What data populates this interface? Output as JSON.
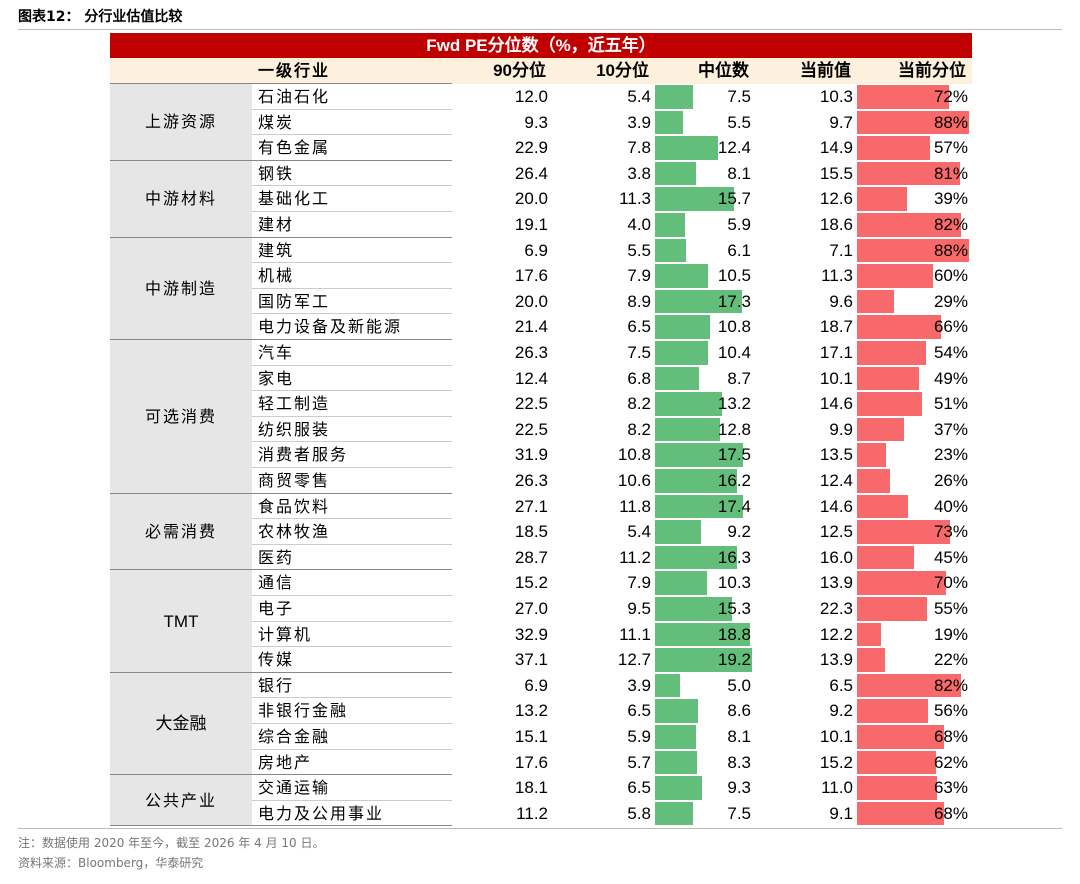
{
  "header": {
    "title": "图表12：  分行业估值比较"
  },
  "table": {
    "title": "Fwd PE分位数（%，近五年）",
    "columns": [
      "一级行业",
      "90分位",
      "10分位",
      "中位数",
      "当前值",
      "当前分位"
    ],
    "groups": [
      {
        "name": "上游资源",
        "rows": [
          [
            "石油石化",
            "12.0",
            "5.4",
            "7.5",
            "10.3",
            "72%"
          ],
          [
            "煤炭",
            "9.3",
            "3.9",
            "5.5",
            "9.7",
            "88%"
          ],
          [
            "有色金属",
            "22.9",
            "7.8",
            "12.4",
            "14.9",
            "57%"
          ]
        ]
      },
      {
        "name": "中游材料",
        "rows": [
          [
            "钢铁",
            "26.4",
            "3.8",
            "8.1",
            "15.5",
            "81%"
          ],
          [
            "基础化工",
            "20.0",
            "11.3",
            "15.7",
            "12.6",
            "39%"
          ],
          [
            "建材",
            "19.1",
            "4.0",
            "5.9",
            "18.6",
            "82%"
          ]
        ]
      },
      {
        "name": "中游制造",
        "rows": [
          [
            "建筑",
            "6.9",
            "5.5",
            "6.1",
            "7.1",
            "88%"
          ],
          [
            "机械",
            "17.6",
            "7.9",
            "10.5",
            "11.3",
            "60%"
          ],
          [
            "国防军工",
            "20.0",
            "8.9",
            "17.3",
            "9.6",
            "29%"
          ],
          [
            "电力设备及新能源",
            "21.4",
            "6.5",
            "10.8",
            "18.7",
            "66%"
          ]
        ]
      },
      {
        "name": "可选消费",
        "rows": [
          [
            "汽车",
            "26.3",
            "7.5",
            "10.4",
            "17.1",
            "54%"
          ],
          [
            "家电",
            "12.4",
            "6.8",
            "8.7",
            "10.1",
            "49%"
          ],
          [
            "轻工制造",
            "22.5",
            "8.2",
            "13.2",
            "14.6",
            "51%"
          ],
          [
            "纺织服装",
            "22.5",
            "8.2",
            "12.8",
            "9.9",
            "37%"
          ],
          [
            "消费者服务",
            "31.9",
            "10.8",
            "17.5",
            "13.5",
            "23%"
          ],
          [
            "商贸零售",
            "26.3",
            "10.6",
            "16.2",
            "12.4",
            "26%"
          ]
        ]
      },
      {
        "name": "必需消费",
        "rows": [
          [
            "食品饮料",
            "27.1",
            "11.8",
            "17.4",
            "14.6",
            "40%"
          ],
          [
            "农林牧渔",
            "18.5",
            "5.4",
            "9.2",
            "12.5",
            "73%"
          ],
          [
            "医药",
            "28.7",
            "11.2",
            "16.3",
            "16.0",
            "45%"
          ]
        ]
      },
      {
        "name": "TMT",
        "rows": [
          [
            "通信",
            "15.2",
            "7.9",
            "10.3",
            "13.9",
            "70%"
          ],
          [
            "电子",
            "27.0",
            "9.5",
            "15.3",
            "22.3",
            "55%"
          ],
          [
            "计算机",
            "32.9",
            "11.1",
            "18.8",
            "12.2",
            "19%"
          ],
          [
            "传媒",
            "37.1",
            "12.7",
            "19.2",
            "13.9",
            "22%"
          ]
        ]
      },
      {
        "name": "大金融",
        "rows": [
          [
            "银行",
            "6.9",
            "3.9",
            "5.0",
            "6.5",
            "82%"
          ],
          [
            "非银行金融",
            "13.2",
            "6.5",
            "8.6",
            "9.2",
            "56%"
          ],
          [
            "综合金融",
            "15.1",
            "5.9",
            "8.1",
            "10.1",
            "68%"
          ],
          [
            "房地产",
            "17.6",
            "5.7",
            "8.3",
            "15.2",
            "62%"
          ]
        ]
      },
      {
        "name": "公共产业",
        "rows": [
          [
            "交通运输",
            "18.1",
            "6.5",
            "9.3",
            "11.0",
            "63%"
          ],
          [
            "电力及公用事业",
            "11.2",
            "5.8",
            "7.5",
            "9.1",
            "68%"
          ]
        ]
      }
    ]
  },
  "footer": {
    "note": "注：数据使用 2020 年至今，截至 2026 年 4 月 10 日。",
    "source": "资料来源：Bloomberg，华泰研究"
  }
}
